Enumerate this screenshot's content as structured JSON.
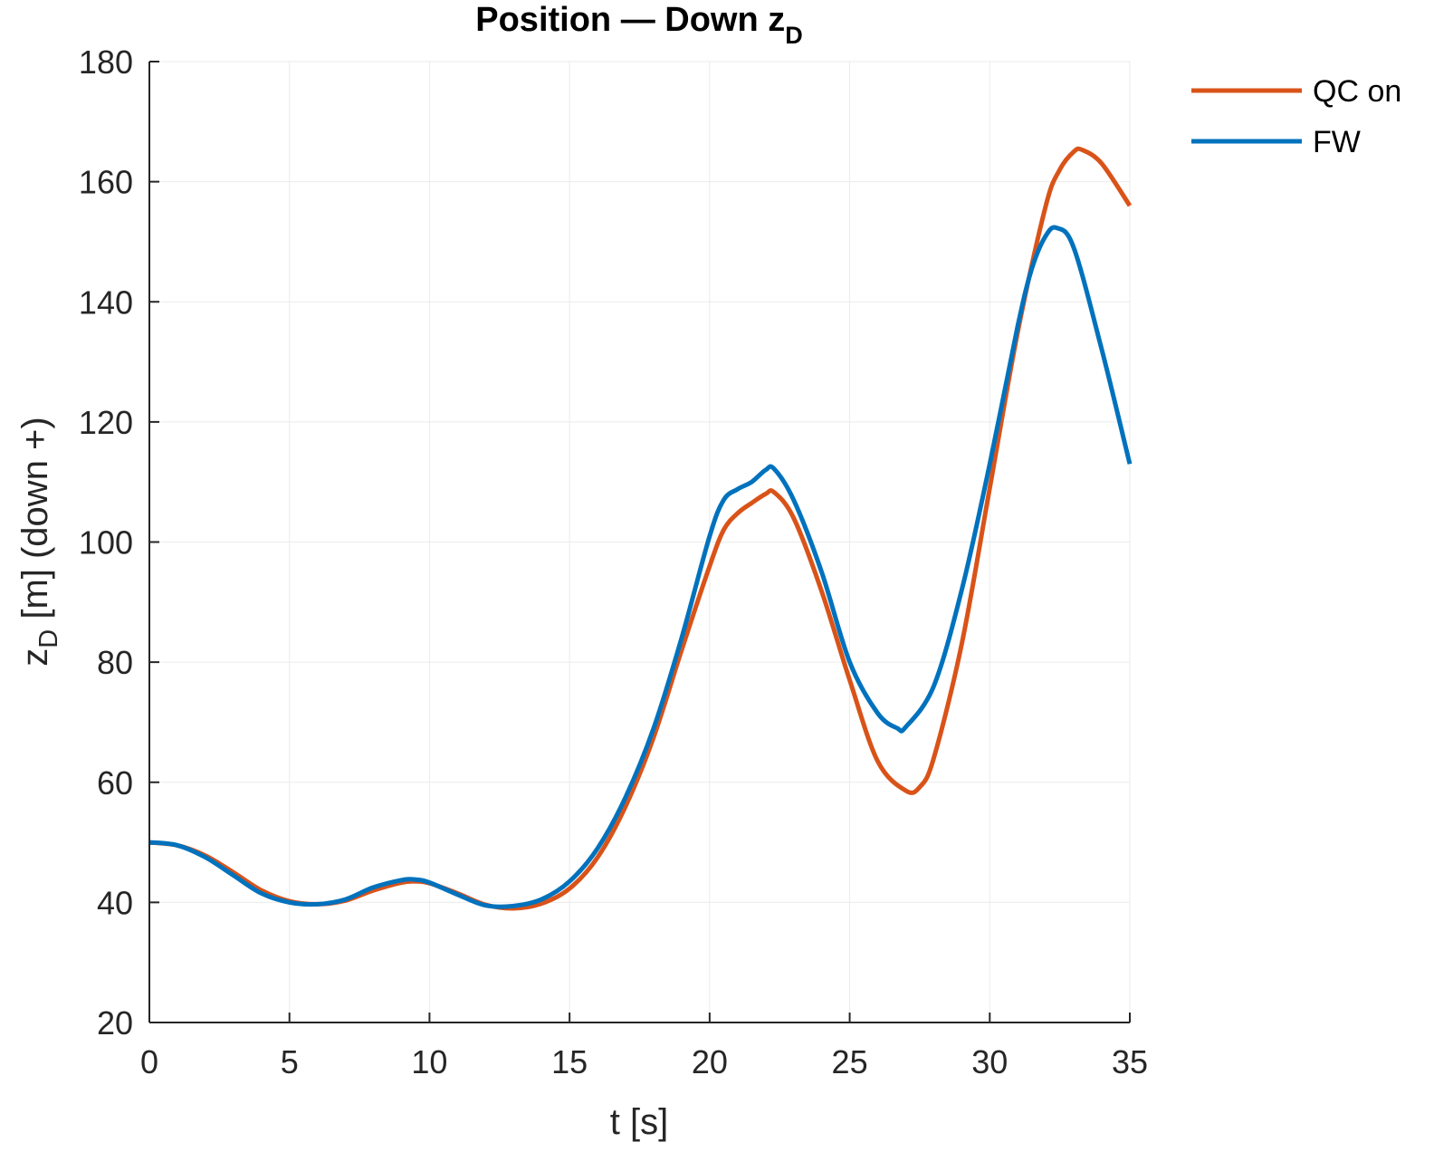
{
  "chart_data": {
    "type": "line",
    "title": "Position — Down z",
    "title_sub": "D",
    "xlabel": "t [s]",
    "ylabel_main": "z",
    "ylabel_sub": "D",
    "ylabel_rest": " [m] (down +)",
    "xlim": [
      0,
      35
    ],
    "ylim": [
      20,
      180
    ],
    "xticks": [
      0,
      5,
      10,
      15,
      20,
      25,
      30,
      35
    ],
    "yticks": [
      20,
      40,
      60,
      80,
      100,
      120,
      140,
      160,
      180
    ],
    "grid": true,
    "legend_position": "top-right outside",
    "series": [
      {
        "name": "QC on",
        "color": "#D95319",
        "x": [
          0,
          1,
          2,
          3,
          4,
          5,
          6,
          7,
          8,
          9,
          9.5,
          10,
          11,
          12,
          13,
          14,
          15,
          16,
          17,
          18,
          19,
          20,
          20.5,
          21,
          21.5,
          22,
          22.3,
          23,
          24,
          25,
          26,
          27,
          27.5,
          28,
          29,
          30,
          31,
          32,
          32.5,
          33,
          33.3,
          34,
          35
        ],
        "y": [
          50,
          49.5,
          47.8,
          45,
          42,
          40.2,
          39.7,
          40.3,
          42,
          43.3,
          43.5,
          43.2,
          41.5,
          39.6,
          39,
          39.8,
          42.3,
          47.5,
          56,
          67.5,
          82,
          96,
          102,
          104.8,
          106.5,
          108,
          108.3,
          104,
          91.8,
          77,
          63.5,
          58.6,
          59.2,
          64,
          83,
          109,
          135,
          156,
          162,
          165,
          165.3,
          163,
          156
        ]
      },
      {
        "name": "FW",
        "color": "#0072BD",
        "x": [
          0,
          1,
          2,
          3,
          4,
          5,
          6,
          7,
          8,
          9,
          9.5,
          10,
          11,
          12,
          13,
          14,
          15,
          16,
          17,
          18,
          19,
          20,
          20.5,
          21,
          21.5,
          22,
          22.3,
          23,
          24,
          25,
          26,
          26.7,
          27,
          28,
          29,
          30,
          31,
          31.5,
          32,
          32.4,
          33,
          34,
          35
        ],
        "y": [
          50,
          49.5,
          47.5,
          44.5,
          41.5,
          40,
          39.7,
          40.5,
          42.5,
          43.7,
          43.8,
          43.3,
          41.3,
          39.5,
          39.4,
          40.5,
          43.5,
          49,
          57.5,
          69,
          84,
          101,
          107,
          108.8,
          110,
          112,
          112.2,
          107,
          95,
          80,
          71.5,
          69,
          69.2,
          76,
          92,
          113,
          136,
          145.5,
          151,
          152.3,
          149,
          132,
          113
        ]
      }
    ]
  }
}
